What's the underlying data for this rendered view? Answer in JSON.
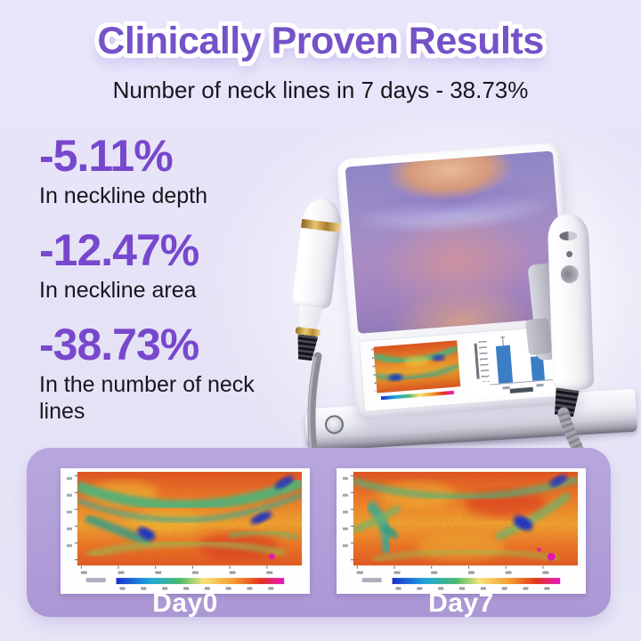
{
  "header": {
    "title": "Clinically Proven Results",
    "subtitle": "Number of neck lines in 7 days - 38.73%"
  },
  "stats": [
    {
      "value": "-5.11%",
      "label": "In neckline depth"
    },
    {
      "value": "-12.47%",
      "label": "In neckline area"
    },
    {
      "value": "-38.73%",
      "label": "In the number of neck lines"
    }
  ],
  "comparison": {
    "cards": [
      {
        "label": "Day0"
      },
      {
        "label": "Day7"
      }
    ]
  },
  "device": {
    "chart": {
      "bars": [
        0.62,
        0.4
      ],
      "bar_color": "#3c7ec5"
    }
  },
  "colors": {
    "accent_purple": "#7452c8",
    "stat_purple": "#7748cd",
    "card_purple": "#b2a0da",
    "background": "#e7e3f7",
    "text_dark": "#16161c",
    "heat_colorbar": [
      "#1b2ed0",
      "#1fa6db",
      "#49bb6c",
      "#f7e27a",
      "#f59a2e",
      "#e3341d",
      "#e616c4"
    ]
  }
}
